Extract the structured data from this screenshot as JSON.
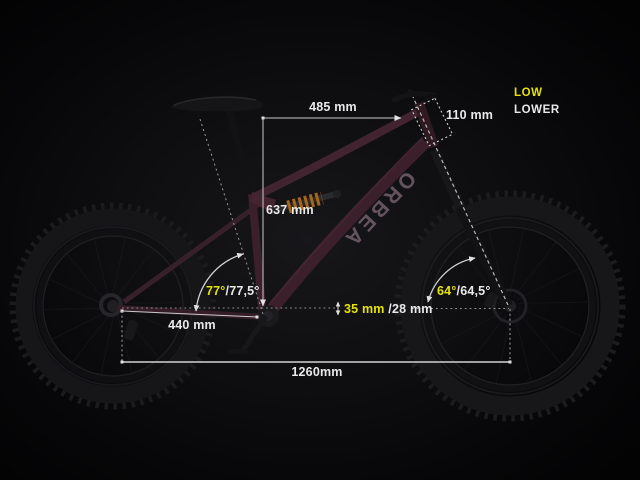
{
  "colors": {
    "background": "#0a0a0b",
    "accent_yellow": "#e6e205",
    "text_white": "#e9e9e9",
    "measure_line": "#c9c9c9",
    "frame_plum": "#3f222e",
    "coil_orange": "#a5661a"
  },
  "bike": {
    "brand_logo": "ORBEA"
  },
  "geometry": {
    "reach": {
      "label": "485 mm"
    },
    "head_tube": {
      "label": "110 mm"
    },
    "stack": {
      "label": "637 mm"
    },
    "seat_tube_angle": {
      "primary": "77°",
      "secondary": "/77,5°"
    },
    "head_angle": {
      "primary": "64°",
      "secondary": "/64,5°"
    },
    "chainstay": {
      "label": "440 mm"
    },
    "bb_drop": {
      "primary": "35 mm",
      "secondary": "/28 mm"
    },
    "wheelbase": {
      "label": "1260mm"
    },
    "geometry_mode": {
      "primary": "LOW",
      "secondary": "LOWER"
    }
  }
}
